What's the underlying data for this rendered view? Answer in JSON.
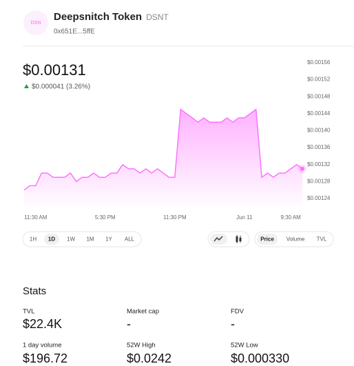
{
  "header": {
    "icon_text": "DSN",
    "name": "Deepsnitch Token",
    "symbol": "DSNT",
    "address": "0x651E...5ffE"
  },
  "price": {
    "value": "$0.00131",
    "change": "$0.000041 (3.26%)"
  },
  "chart_data": {
    "type": "area",
    "color": "#fc72ff",
    "x": [
      0,
      1,
      2,
      3,
      4,
      5,
      6,
      7,
      8,
      9,
      10,
      11,
      12,
      13,
      14,
      15,
      16,
      17,
      18,
      19,
      20,
      21,
      22,
      23,
      24,
      25,
      26,
      27,
      28,
      29,
      30,
      31,
      32,
      33,
      34,
      35,
      36,
      37,
      38,
      39,
      40,
      41,
      42,
      43,
      44,
      45,
      46,
      47,
      48
    ],
    "series": [
      {
        "name": "Price",
        "color": "#fc72ff",
        "values": [
          0.00126,
          0.00127,
          0.00127,
          0.0013,
          0.0013,
          0.00129,
          0.00129,
          0.00129,
          0.0013,
          0.00128,
          0.00129,
          0.00129,
          0.0013,
          0.00129,
          0.00129,
          0.0013,
          0.0013,
          0.00132,
          0.00131,
          0.00131,
          0.0013,
          0.00131,
          0.0013,
          0.00131,
          0.0013,
          0.00129,
          0.00129,
          0.00145,
          0.00144,
          0.00143,
          0.00142,
          0.00143,
          0.00142,
          0.00142,
          0.00142,
          0.00143,
          0.00142,
          0.00143,
          0.00143,
          0.00144,
          0.00145,
          0.00129,
          0.0013,
          0.00129,
          0.0013,
          0.0013,
          0.00131,
          0.00132,
          0.00131
        ]
      }
    ],
    "xlim": [
      0,
      48
    ],
    "xticks": [
      {
        "value": 2,
        "label": "11:30 AM"
      },
      {
        "value": 14,
        "label": "5:30 PM"
      },
      {
        "value": 26,
        "label": "11:30 PM"
      },
      {
        "value": 38,
        "label": "Jun 11"
      },
      {
        "value": 46,
        "label": "9:30 AM"
      }
    ],
    "ylim": [
      0.00124,
      0.00156
    ],
    "yticks": [
      {
        "value": 0.00124,
        "label": "$0.00124"
      },
      {
        "value": 0.00128,
        "label": "$0.00128"
      },
      {
        "value": 0.00132,
        "label": "$0.00132"
      },
      {
        "value": 0.00136,
        "label": "$0.00136"
      },
      {
        "value": 0.0014,
        "label": "$0.00140"
      },
      {
        "value": 0.00144,
        "label": "$0.00144"
      },
      {
        "value": 0.00148,
        "label": "$0.00148"
      },
      {
        "value": 0.00152,
        "label": "$0.00152"
      },
      {
        "value": 0.00156,
        "label": "$0.00156"
      }
    ]
  },
  "controls": {
    "ranges": [
      "1H",
      "1D",
      "1W",
      "1M",
      "1Y",
      "ALL"
    ],
    "selected_range": "1D",
    "metrics": [
      "Price",
      "Volume",
      "TVL"
    ],
    "selected_metric": "Price"
  },
  "stats": {
    "title": "Stats",
    "items": [
      {
        "label": "TVL",
        "value": "$22.4K"
      },
      {
        "label": "Market cap",
        "value": "-"
      },
      {
        "label": "FDV",
        "value": "-"
      },
      {
        "label": "1 day volume",
        "value": "$196.72"
      },
      {
        "label": "52W High",
        "value": "$0.0242"
      },
      {
        "label": "52W Low",
        "value": "$0.000330"
      }
    ]
  }
}
